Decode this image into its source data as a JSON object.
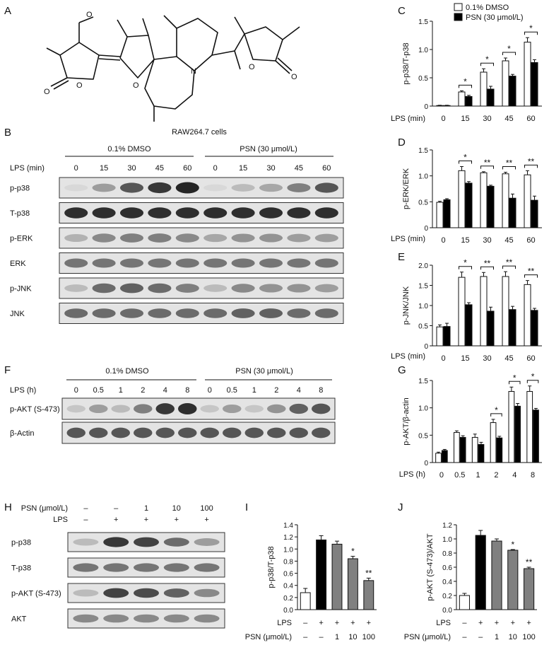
{
  "panels": {
    "A": "A",
    "B": "B",
    "C": "C",
    "D": "D",
    "E": "E",
    "F": "F",
    "G": "G",
    "H": "H",
    "I": "I",
    "J": "J"
  },
  "legend": {
    "dmso": "0.1% DMSO",
    "psn": "PSN (30 μmol/L)"
  },
  "colors": {
    "dmso_fill": "#ffffff",
    "psn_fill": "#000000",
    "gray_bar": "#808080",
    "band": "#1a1a1a",
    "membrane": "#e4e4e4"
  },
  "blot_B": {
    "cell_line": "RAW264.7 cells",
    "group_dmso": "0.1% DMSO",
    "group_psn": "PSN (30 μmol/L)",
    "lps_label": "LPS (min)",
    "lanes": [
      "0",
      "15",
      "30",
      "45",
      "60",
      "0",
      "15",
      "30",
      "45",
      "60"
    ],
    "rows": [
      {
        "label": "p-p38",
        "intensity": [
          0.05,
          0.35,
          0.7,
          0.85,
          0.95,
          0.05,
          0.2,
          0.3,
          0.5,
          0.7
        ]
      },
      {
        "label": "T-p38",
        "intensity": [
          0.9,
          0.9,
          0.9,
          0.9,
          0.9,
          0.9,
          0.9,
          0.9,
          0.9,
          0.9
        ]
      },
      {
        "label": "p-ERK",
        "intensity": [
          0.25,
          0.45,
          0.5,
          0.5,
          0.45,
          0.3,
          0.4,
          0.4,
          0.35,
          0.35
        ]
      },
      {
        "label": "ERK",
        "intensity": [
          0.55,
          0.55,
          0.55,
          0.55,
          0.55,
          0.55,
          0.55,
          0.55,
          0.55,
          0.55
        ]
      },
      {
        "label": "p-JNK",
        "intensity": [
          0.2,
          0.6,
          0.65,
          0.6,
          0.5,
          0.2,
          0.45,
          0.4,
          0.4,
          0.35
        ]
      },
      {
        "label": "JNK",
        "intensity": [
          0.6,
          0.6,
          0.6,
          0.6,
          0.6,
          0.6,
          0.65,
          0.65,
          0.6,
          0.6
        ]
      }
    ]
  },
  "blot_F": {
    "group_dmso": "0.1% DMSO",
    "group_psn": "PSN (30 μmol/L)",
    "lps_label": "LPS (h)",
    "lanes": [
      "0",
      "0.5",
      "1",
      "2",
      "4",
      "8",
      "0",
      "0.5",
      "1",
      "2",
      "4",
      "8"
    ],
    "rows": [
      {
        "label": "p-AKT (S-473)",
        "intensity": [
          0.15,
          0.35,
          0.2,
          0.5,
          0.85,
          0.9,
          0.15,
          0.35,
          0.15,
          0.4,
          0.65,
          0.7
        ]
      },
      {
        "label": "β-Actin",
        "intensity": [
          0.7,
          0.7,
          0.7,
          0.7,
          0.7,
          0.7,
          0.7,
          0.7,
          0.7,
          0.7,
          0.7,
          0.7
        ]
      }
    ]
  },
  "blot_H": {
    "psn_label": "PSN (μmol/L)",
    "lps_label": "LPS",
    "psn_values": [
      "–",
      "–",
      "1",
      "10",
      "100"
    ],
    "lps_values": [
      "–",
      "+",
      "+",
      "+",
      "+"
    ],
    "rows": [
      {
        "label": "p-p38",
        "intensity": [
          0.2,
          0.85,
          0.8,
          0.6,
          0.35
        ]
      },
      {
        "label": "T-p38",
        "intensity": [
          0.55,
          0.55,
          0.55,
          0.55,
          0.55
        ]
      },
      {
        "label": "p-AKT (S-473)",
        "intensity": [
          0.2,
          0.8,
          0.75,
          0.65,
          0.45
        ]
      },
      {
        "label": "AKT",
        "intensity": [
          0.45,
          0.45,
          0.45,
          0.45,
          0.45
        ]
      }
    ]
  },
  "chart_data": [
    {
      "panel": "C",
      "type": "bar",
      "xlabel": "LPS (min)",
      "ylabel": "p-p38/T-p38",
      "categories": [
        "0",
        "15",
        "30",
        "45",
        "60"
      ],
      "ylim": [
        0,
        1.5
      ],
      "yticks": [
        "0",
        "0.5",
        "1.0",
        "1.5"
      ],
      "ytick_values": [
        0,
        0.5,
        1.0,
        1.5
      ],
      "series": [
        {
          "name": "0.1% DMSO",
          "values": [
            0.01,
            0.25,
            0.6,
            0.8,
            1.13
          ],
          "errors": [
            0.005,
            0.02,
            0.06,
            0.05,
            0.08
          ]
        },
        {
          "name": "PSN (30 μmol/L)",
          "values": [
            0.01,
            0.17,
            0.3,
            0.53,
            0.77
          ],
          "errors": [
            0.005,
            0.02,
            0.05,
            0.03,
            0.05
          ]
        }
      ],
      "significance": [
        "",
        "*",
        "*",
        "*",
        "*"
      ]
    },
    {
      "panel": "D",
      "type": "bar",
      "xlabel": "LPS (min)",
      "ylabel": "p-ERK/ERK",
      "categories": [
        "0",
        "15",
        "30",
        "45",
        "60"
      ],
      "ylim": [
        0,
        1.5
      ],
      "yticks": [
        "0",
        "0.5",
        "1.0",
        "1.5"
      ],
      "ytick_values": [
        0,
        0.5,
        1.0,
        1.5
      ],
      "series": [
        {
          "name": "0.1% DMSO",
          "values": [
            0.49,
            1.1,
            1.06,
            1.04,
            1.02
          ],
          "errors": [
            0.02,
            0.08,
            0.02,
            0.03,
            0.08
          ]
        },
        {
          "name": "PSN (30 μmol/L)",
          "values": [
            0.54,
            0.86,
            0.8,
            0.57,
            0.53
          ],
          "errors": [
            0.02,
            0.03,
            0.02,
            0.08,
            0.08
          ]
        }
      ],
      "significance": [
        "",
        "*",
        "**",
        "**",
        "**"
      ]
    },
    {
      "panel": "E",
      "type": "bar",
      "xlabel": "LPS (min)",
      "ylabel": "p-JNK/JNK",
      "categories": [
        "0",
        "15",
        "30",
        "45",
        "60"
      ],
      "ylim": [
        0,
        2.0
      ],
      "yticks": [
        "0",
        "0.5",
        "1.0",
        "1.5",
        "2.0"
      ],
      "ytick_values": [
        0,
        0.5,
        1.0,
        1.5,
        2.0
      ],
      "series": [
        {
          "name": "0.1% DMSO",
          "values": [
            0.47,
            1.7,
            1.72,
            1.72,
            1.52
          ],
          "errors": [
            0.05,
            0.13,
            0.1,
            0.12,
            0.1
          ]
        },
        {
          "name": "PSN (30 μmol/L)",
          "values": [
            0.48,
            1.02,
            0.86,
            0.9,
            0.88
          ],
          "errors": [
            0.08,
            0.05,
            0.1,
            0.08,
            0.05
          ]
        }
      ],
      "significance": [
        "",
        "*",
        "**",
        "**",
        "**"
      ]
    },
    {
      "panel": "G",
      "type": "bar",
      "xlabel": "LPS (h)",
      "ylabel": "p-AKT/β-actin",
      "categories": [
        "0",
        "0.5",
        "1",
        "2",
        "4",
        "8"
      ],
      "ylim": [
        0,
        1.5
      ],
      "yticks": [
        "0",
        "0.5",
        "1.0",
        "1.5"
      ],
      "ytick_values": [
        0,
        0.5,
        1.0,
        1.5
      ],
      "series": [
        {
          "name": "0.1% DMSO",
          "values": [
            0.17,
            0.55,
            0.46,
            0.73,
            1.3,
            1.3
          ],
          "errors": [
            0.02,
            0.03,
            0.06,
            0.06,
            0.08,
            0.1
          ]
        },
        {
          "name": "PSN (30 μmol/L)",
          "values": [
            0.22,
            0.46,
            0.33,
            0.45,
            1.03,
            0.96
          ],
          "errors": [
            0.02,
            0.03,
            0.04,
            0.03,
            0.05,
            0.03
          ]
        }
      ],
      "significance": [
        "",
        "",
        "",
        "*",
        "*",
        "*"
      ]
    },
    {
      "panel": "I",
      "type": "bar",
      "ylabel": "p-p38/T-p38",
      "row_labels": [
        "LPS",
        "PSN (μmol/L)"
      ],
      "lps": [
        "–",
        "+",
        "+",
        "+",
        "+"
      ],
      "psn": [
        "–",
        "–",
        "1",
        "10",
        "100"
      ],
      "ylim": [
        0.0,
        1.4
      ],
      "yticks": [
        "0.0",
        "0.2",
        "0.4",
        "0.6",
        "0.8",
        "1.0",
        "1.2",
        "1.4"
      ],
      "ytick_values": [
        0,
        0.2,
        0.4,
        0.6,
        0.8,
        1.0,
        1.2,
        1.4
      ],
      "values": [
        0.28,
        1.15,
        1.08,
        0.84,
        0.48
      ],
      "errors": [
        0.07,
        0.07,
        0.05,
        0.04,
        0.04
      ],
      "fills": [
        "white",
        "black",
        "gray",
        "gray",
        "gray"
      ],
      "significance": [
        "",
        "",
        "",
        "*",
        "**"
      ]
    },
    {
      "panel": "J",
      "type": "bar",
      "ylabel": "p-AKT (S-473)/AKT",
      "row_labels": [
        "LPS",
        "PSN (μmol/L)"
      ],
      "lps": [
        "–",
        "+",
        "+",
        "+",
        "+"
      ],
      "psn": [
        "–",
        "–",
        "1",
        "10",
        "100"
      ],
      "ylim": [
        0.0,
        1.2
      ],
      "yticks": [
        "0.0",
        "0.2",
        "0.4",
        "0.6",
        "0.8",
        "1.0",
        "1.2"
      ],
      "ytick_values": [
        0,
        0.2,
        0.4,
        0.6,
        0.8,
        1.0,
        1.2
      ],
      "values": [
        0.2,
        1.05,
        0.97,
        0.84,
        0.58
      ],
      "errors": [
        0.03,
        0.07,
        0.03,
        0.01,
        0.02
      ],
      "fills": [
        "white",
        "black",
        "gray",
        "gray",
        "gray"
      ],
      "significance": [
        "",
        "",
        "",
        "*",
        "**"
      ]
    }
  ]
}
